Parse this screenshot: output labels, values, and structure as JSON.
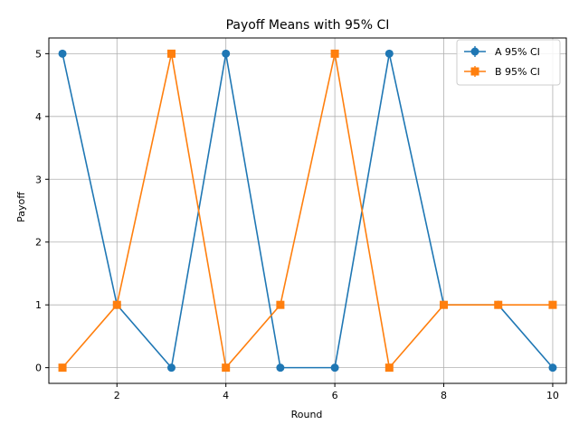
{
  "chart_data": {
    "type": "line",
    "title": "Payoff Means with 95% CI",
    "xlabel": "Round",
    "ylabel": "Payoff",
    "xlim": [
      0.75,
      10.25
    ],
    "ylim": [
      -0.25,
      5.25
    ],
    "xticks": [
      2,
      4,
      6,
      8,
      10
    ],
    "yticks": [
      0,
      1,
      2,
      3,
      4,
      5
    ],
    "grid": true,
    "legend_position": "top-right",
    "x": [
      1,
      2,
      3,
      4,
      5,
      6,
      7,
      8,
      9,
      10
    ],
    "series": [
      {
        "name": "A 95% CI",
        "color": "#1f77b4",
        "marker": "circle",
        "values": [
          5,
          1,
          0,
          5,
          0,
          0,
          5,
          1,
          1,
          0
        ]
      },
      {
        "name": "B 95% CI",
        "color": "#ff7f0e",
        "marker": "square",
        "values": [
          0,
          1,
          5,
          0,
          1,
          5,
          0,
          1,
          1,
          1
        ]
      }
    ]
  }
}
